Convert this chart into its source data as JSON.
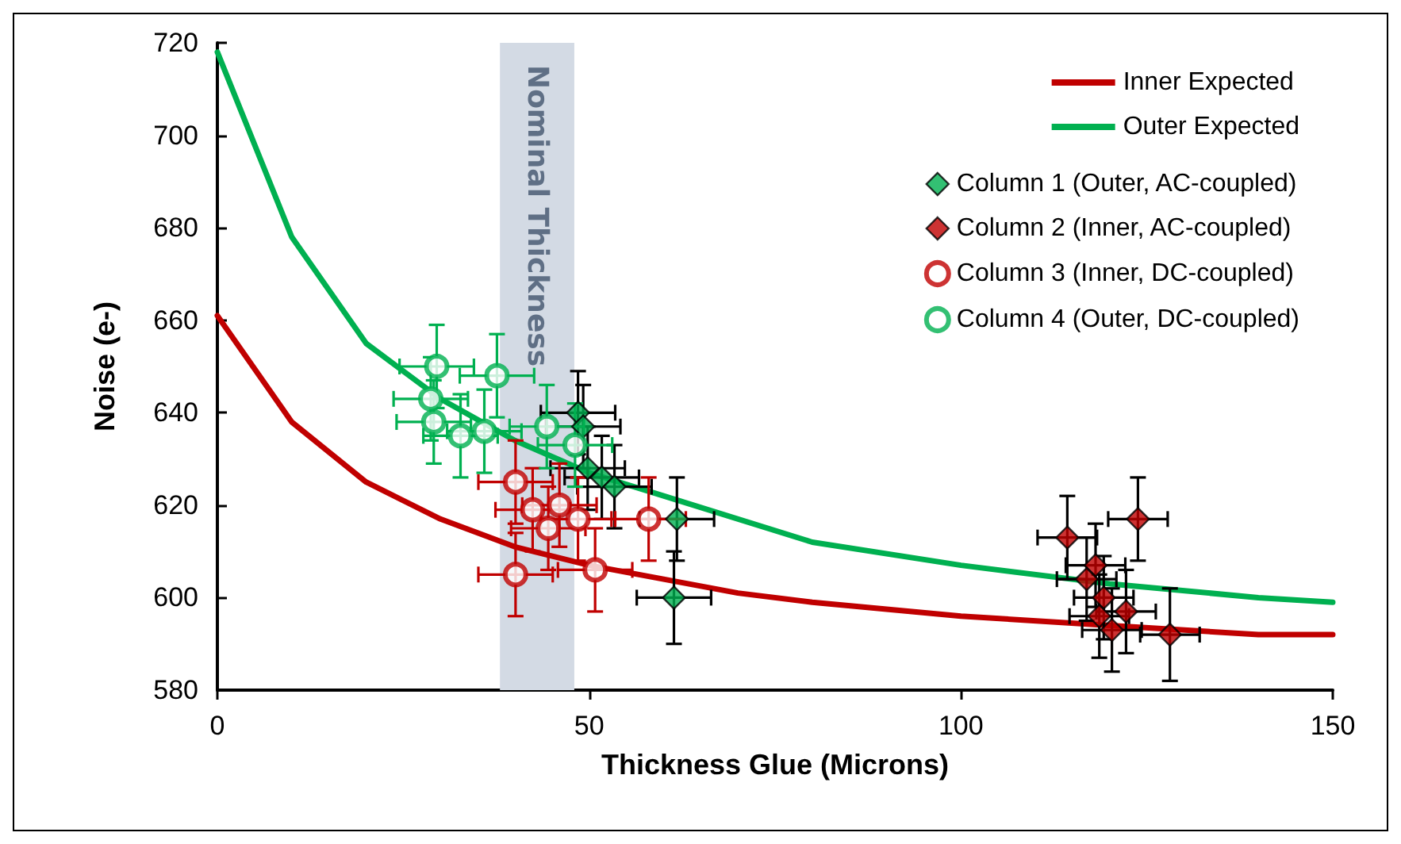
{
  "chart_data": {
    "type": "scatter",
    "xlabel": "Thickness Glue (Microns)",
    "ylabel": "Noise (e-)",
    "xlim": [
      0,
      150
    ],
    "xticks": [
      0,
      50,
      100,
      150
    ],
    "ylim": [
      580,
      720
    ],
    "yticks": [
      580,
      600,
      620,
      640,
      660,
      680,
      700,
      720
    ],
    "grid": false,
    "legend": "top right",
    "bands": [
      {
        "axis": "x",
        "from": 38,
        "to": 48,
        "label": "Nominal Thickness",
        "color": "#d3dae4"
      }
    ],
    "series": [
      {
        "name": "Inner Expected",
        "type": "line",
        "color": "#c00000",
        "marker": "none",
        "line_style": "solid",
        "x": [
          0,
          10,
          20,
          30,
          40,
          50,
          60,
          70,
          80,
          100,
          120,
          140,
          150
        ],
        "values": [
          661,
          638,
          625,
          617,
          611,
          607,
          604,
          601,
          599,
          596,
          594,
          592,
          592
        ]
      },
      {
        "name": "Outer Expected",
        "type": "line",
        "color": "#00b050",
        "marker": "none",
        "line_style": "solid",
        "x": [
          0,
          10,
          20,
          30,
          40,
          50,
          60,
          80,
          100,
          120,
          140,
          150
        ],
        "values": [
          718,
          678,
          655,
          643,
          634,
          627,
          622,
          612,
          607,
          603,
          600,
          599
        ]
      },
      {
        "name": "Column 1 (Outer, AC-coupled)",
        "color": "#00b050",
        "marker": "diamond",
        "x": [
          48.5,
          49.2,
          49.8,
          51.7,
          53.4,
          61.8,
          61.4
        ],
        "values": [
          640,
          637,
          628,
          626,
          624,
          617,
          600
        ],
        "errors": [
          9,
          9,
          9,
          9,
          9,
          9,
          10
        ],
        "xerrors": [
          5,
          5,
          5,
          5,
          5,
          5,
          5
        ]
      },
      {
        "name": "Column 2 (Inner, AC-coupled)",
        "color": "#c00000",
        "marker": "diamond",
        "x": [
          114.3,
          123.8,
          118.1,
          116.9,
          119.2,
          118.6,
          122.2,
          120.3,
          128.1
        ],
        "values": [
          613,
          617,
          607,
          604,
          600,
          596,
          597,
          593,
          592
        ],
        "errors": [
          9,
          9,
          9,
          9,
          9,
          9,
          9,
          9,
          10
        ],
        "xerrors": [
          4,
          4,
          4,
          4,
          4,
          4,
          4,
          4,
          4
        ]
      },
      {
        "name": "Column 3 (Inner, DC-coupled)",
        "color": "#c00000",
        "marker": "circle",
        "x": [
          40.1,
          42.4,
          46,
          44.5,
          48.5,
          58,
          50.8,
          40.1
        ],
        "values": [
          625,
          619,
          620,
          615,
          617,
          617,
          606,
          605
        ],
        "errors": [
          9,
          9,
          9,
          9,
          9,
          9,
          9,
          9
        ],
        "xerrors": [
          5,
          5,
          5,
          5,
          5,
          5,
          5,
          5
        ]
      },
      {
        "name": "Column 4 (Outer, DC-coupled)",
        "color": "#00b050",
        "marker": "circle",
        "x": [
          29.5,
          28.7,
          29.1,
          32.7,
          35.9,
          37.6,
          44.3,
          48.1
        ],
        "values": [
          650,
          643,
          638,
          635,
          636,
          648,
          637,
          633
        ],
        "errors": [
          9,
          9,
          9,
          9,
          9,
          9,
          9,
          9
        ],
        "xerrors": [
          5,
          5,
          5,
          5,
          5,
          5,
          5,
          5
        ]
      }
    ]
  }
}
